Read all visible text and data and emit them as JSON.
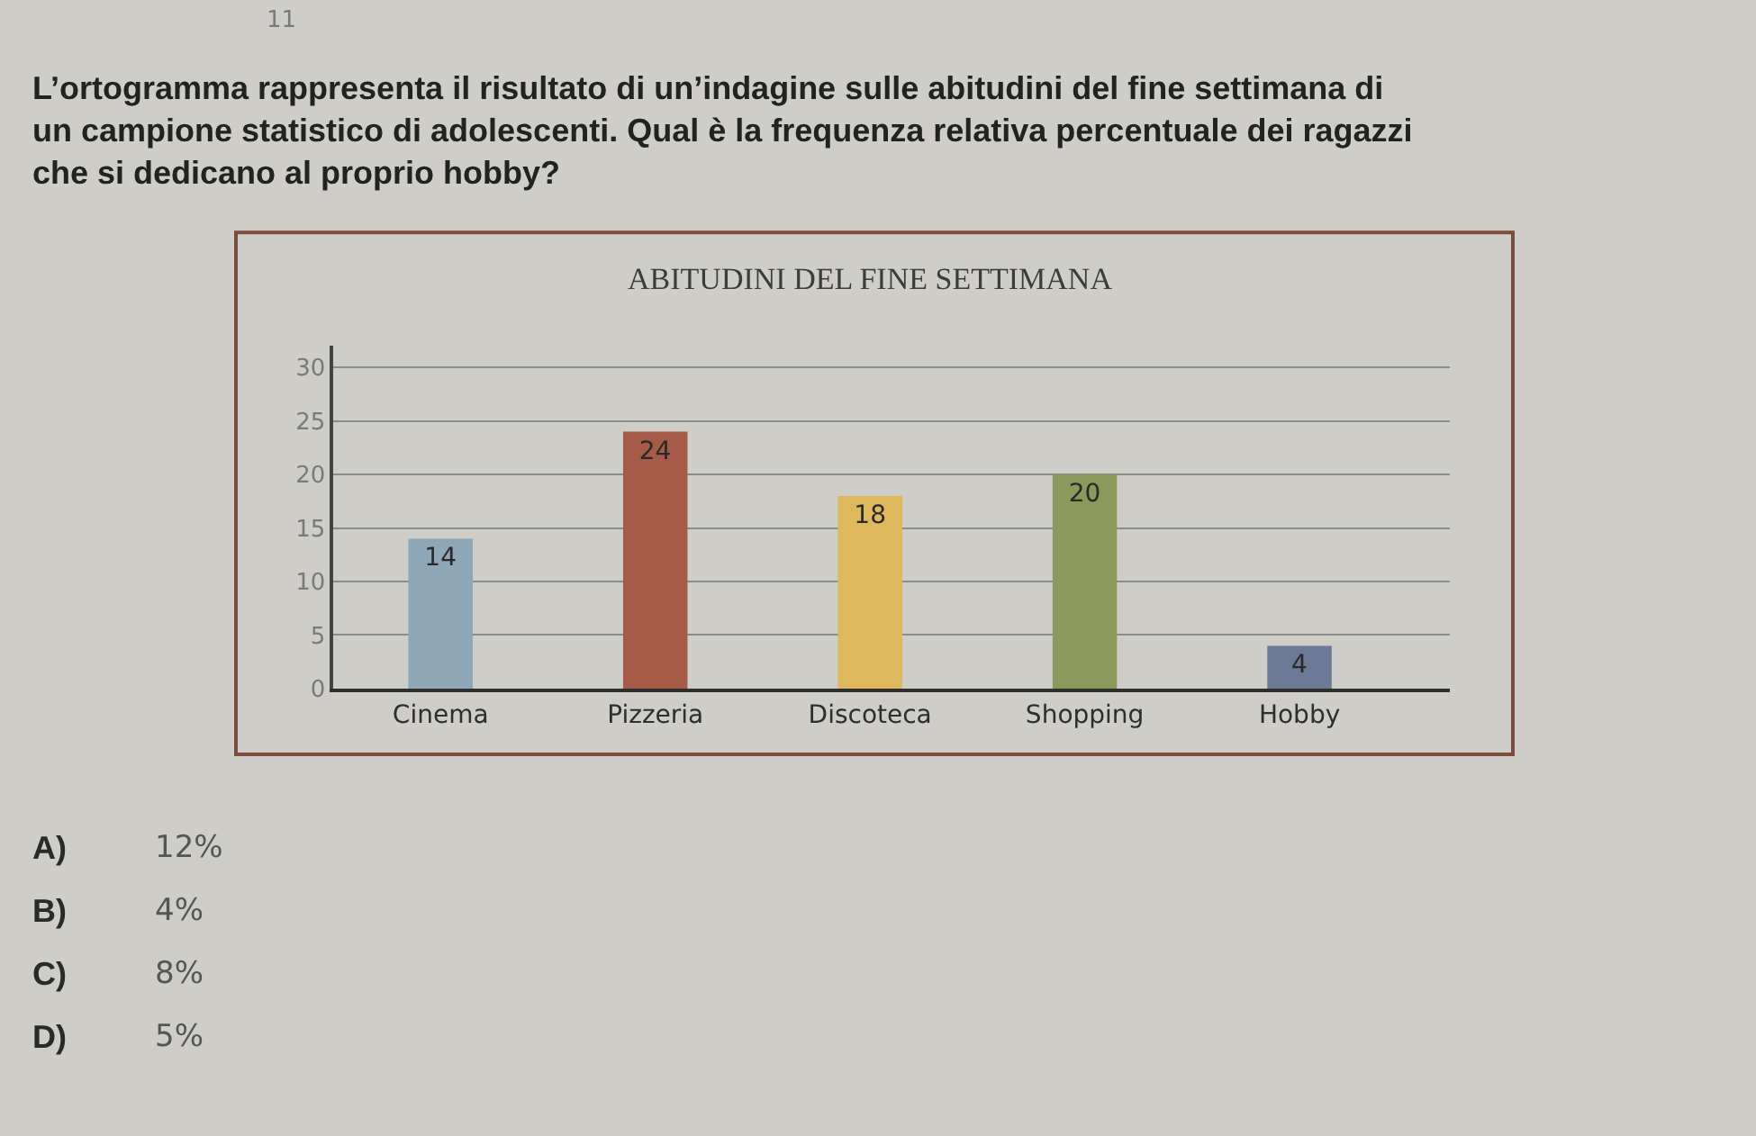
{
  "chart_data": {
    "type": "bar",
    "title": "ABITUDINI DEL FINE SETTIMANA",
    "categories": [
      "Cinema",
      "Pizzeria",
      "Discoteca",
      "Shopping",
      "Hobby"
    ],
    "values": [
      14,
      24,
      18,
      20,
      4
    ],
    "colors": [
      "#8fa8b8",
      "#a65a48",
      "#dfb75c",
      "#8b9a5c",
      "#6b7b95"
    ],
    "ylim": [
      0,
      32
    ],
    "yticks": [
      0,
      5,
      10,
      15,
      20,
      25,
      30
    ],
    "grid": "y",
    "data_labels": true,
    "annotations": [
      "11",
      "L’ortogramma rappresenta il risultato di un’indagine sulle abitudini del fine settimana di un campione statistico di adolescenti. Qual è la frequenza relativa percentuale dei ragazzi che si dedicano al proprio hobby?",
      "A)",
      "12%",
      "B)",
      "4%",
      "C)",
      "8%",
      "D)",
      "5%"
    ]
  }
}
